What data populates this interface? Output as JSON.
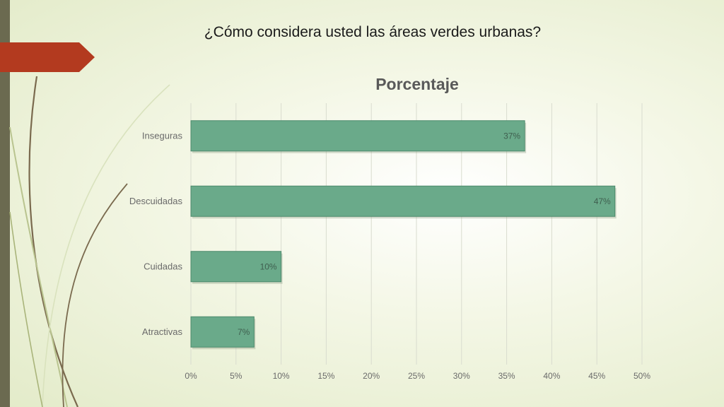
{
  "slide": {
    "title": "¿Cómo considera usted las áreas verdes urbanas?"
  },
  "colors": {
    "bar": "#6aaa8a",
    "bar_edge": "#4d8a6c",
    "label": "#6a6a6a",
    "accent_tab": "#b33a1f",
    "left_bar": "#6b6a50"
  },
  "chart_data": {
    "type": "bar",
    "orientation": "horizontal",
    "title": "Porcentaje",
    "categories": [
      "Inseguras",
      "Descuidadas",
      "Cuidadas",
      "Atractivas"
    ],
    "values": [
      37,
      47,
      10,
      7
    ],
    "data_labels": [
      "37%",
      "47%",
      "10%",
      "7%"
    ],
    "xlim": [
      0,
      50
    ],
    "x_ticks": [
      "0%",
      "5%",
      "10%",
      "15%",
      "20%",
      "25%",
      "30%",
      "35%",
      "40%",
      "45%",
      "50%"
    ],
    "grid": "vertical",
    "legend": "none"
  }
}
